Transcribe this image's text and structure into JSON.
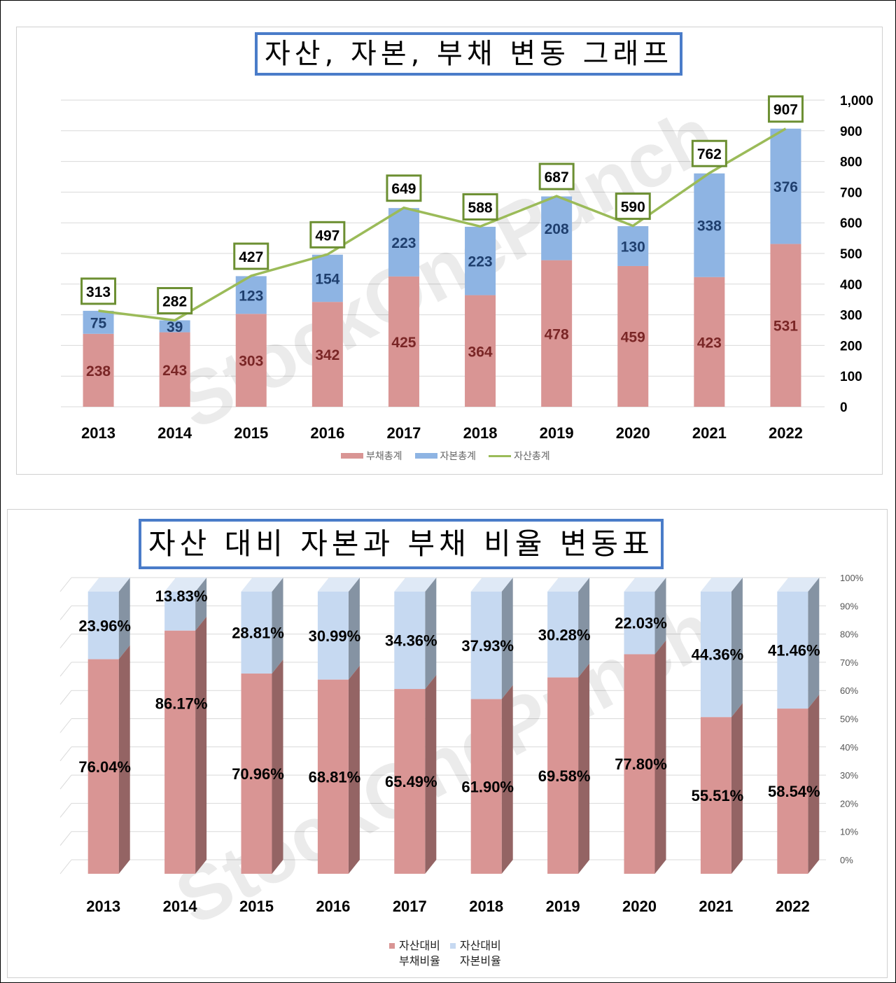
{
  "chart_data": [
    {
      "type": "bar",
      "stacked": true,
      "title": "자산, 자본, 부채 변동 그래프",
      "categories": [
        "2013",
        "2014",
        "2015",
        "2016",
        "2017",
        "2018",
        "2019",
        "2020",
        "2021",
        "2022"
      ],
      "series": [
        {
          "name": "부채총계",
          "type": "bar",
          "color": "#d99594",
          "values": [
            238,
            243,
            303,
            342,
            425,
            364,
            478,
            459,
            423,
            531
          ]
        },
        {
          "name": "자본총계",
          "type": "bar",
          "color": "#8eb4e3",
          "values": [
            75,
            39,
            123,
            154,
            223,
            223,
            208,
            130,
            338,
            376
          ]
        },
        {
          "name": "자산총계",
          "type": "line",
          "color": "#9bbb59",
          "values": [
            313,
            282,
            427,
            497,
            649,
            588,
            687,
            590,
            762,
            907
          ]
        }
      ],
      "ylim": [
        0,
        1000
      ],
      "yticks": [
        "0",
        "100",
        "200",
        "300",
        "400",
        "500",
        "600",
        "700",
        "800",
        "900",
        "1,000"
      ],
      "y_axis_position": "right",
      "legend": "bottom",
      "watermark": "StockOnePunch"
    },
    {
      "type": "bar",
      "stacked": true,
      "percent": true,
      "title": "자산 대비 자본과 부채 비율 변동표",
      "categories": [
        "2013",
        "2014",
        "2015",
        "2016",
        "2017",
        "2018",
        "2019",
        "2020",
        "2021",
        "2022"
      ],
      "series": [
        {
          "name": "자산대비\n부채비율",
          "color": "#d99594",
          "values": [
            76.04,
            86.17,
            70.96,
            68.81,
            65.49,
            61.9,
            69.58,
            77.8,
            55.51,
            58.54
          ],
          "labels": [
            "76.04%",
            "86.17%",
            "70.96%",
            "68.81%",
            "65.49%",
            "61.90%",
            "69.58%",
            "77.80%",
            "55.51%",
            "58.54%"
          ]
        },
        {
          "name": "자산대비\n자본비율",
          "color": "#c6d9f1",
          "values": [
            23.96,
            13.83,
            28.81,
            30.99,
            34.36,
            37.93,
            30.28,
            22.03,
            44.36,
            41.46
          ],
          "labels": [
            "23.96%",
            "13.83%",
            "28.81%",
            "30.99%",
            "34.36%",
            "37.93%",
            "30.28%",
            "22.03%",
            "44.36%",
            "41.46%"
          ]
        }
      ],
      "ylim": [
        0,
        100
      ],
      "yticks": [
        "0%",
        "10%",
        "20%",
        "30%",
        "40%",
        "50%",
        "60%",
        "70%",
        "80%",
        "90%",
        "100%"
      ],
      "y_axis_position": "right",
      "legend": "bottom",
      "watermark": "StockOnePunch"
    }
  ]
}
